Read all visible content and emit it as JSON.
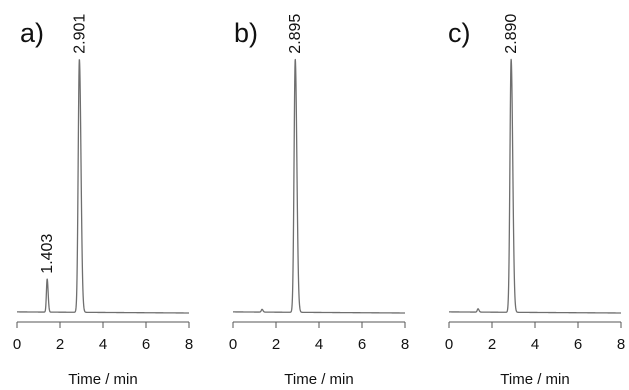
{
  "chart_data": [
    {
      "type": "line",
      "panel_label": "a)",
      "xlabel": "Time / min",
      "xlim": [
        0,
        8
      ],
      "xticks": [
        "0",
        "2",
        "4",
        "6",
        "8"
      ],
      "ylim": [
        0,
        1
      ],
      "y_axis_shown": false,
      "peaks": [
        {
          "time": 1.403,
          "height": 0.12,
          "label": "1.403"
        },
        {
          "time": 2.901,
          "height": 0.92,
          "label": "2.901"
        }
      ]
    },
    {
      "type": "line",
      "panel_label": "b)",
      "xlabel": "Time / min",
      "xlim": [
        0,
        8
      ],
      "xticks": [
        "0",
        "2",
        "4",
        "6",
        "8"
      ],
      "ylim": [
        0,
        1
      ],
      "y_axis_shown": false,
      "peaks": [
        {
          "time": 1.35,
          "height": 0.01
        },
        {
          "time": 2.895,
          "height": 0.92,
          "label": "2.895"
        }
      ]
    },
    {
      "type": "line",
      "panel_label": "c)",
      "xlabel": "Time / min",
      "xlim": [
        0,
        8
      ],
      "xticks": [
        "0",
        "2",
        "4",
        "6",
        "8"
      ],
      "ylim": [
        0,
        1
      ],
      "y_axis_shown": false,
      "peaks": [
        {
          "time": 1.35,
          "height": 0.012
        },
        {
          "time": 2.89,
          "height": 0.92,
          "label": "2.890"
        }
      ]
    }
  ]
}
